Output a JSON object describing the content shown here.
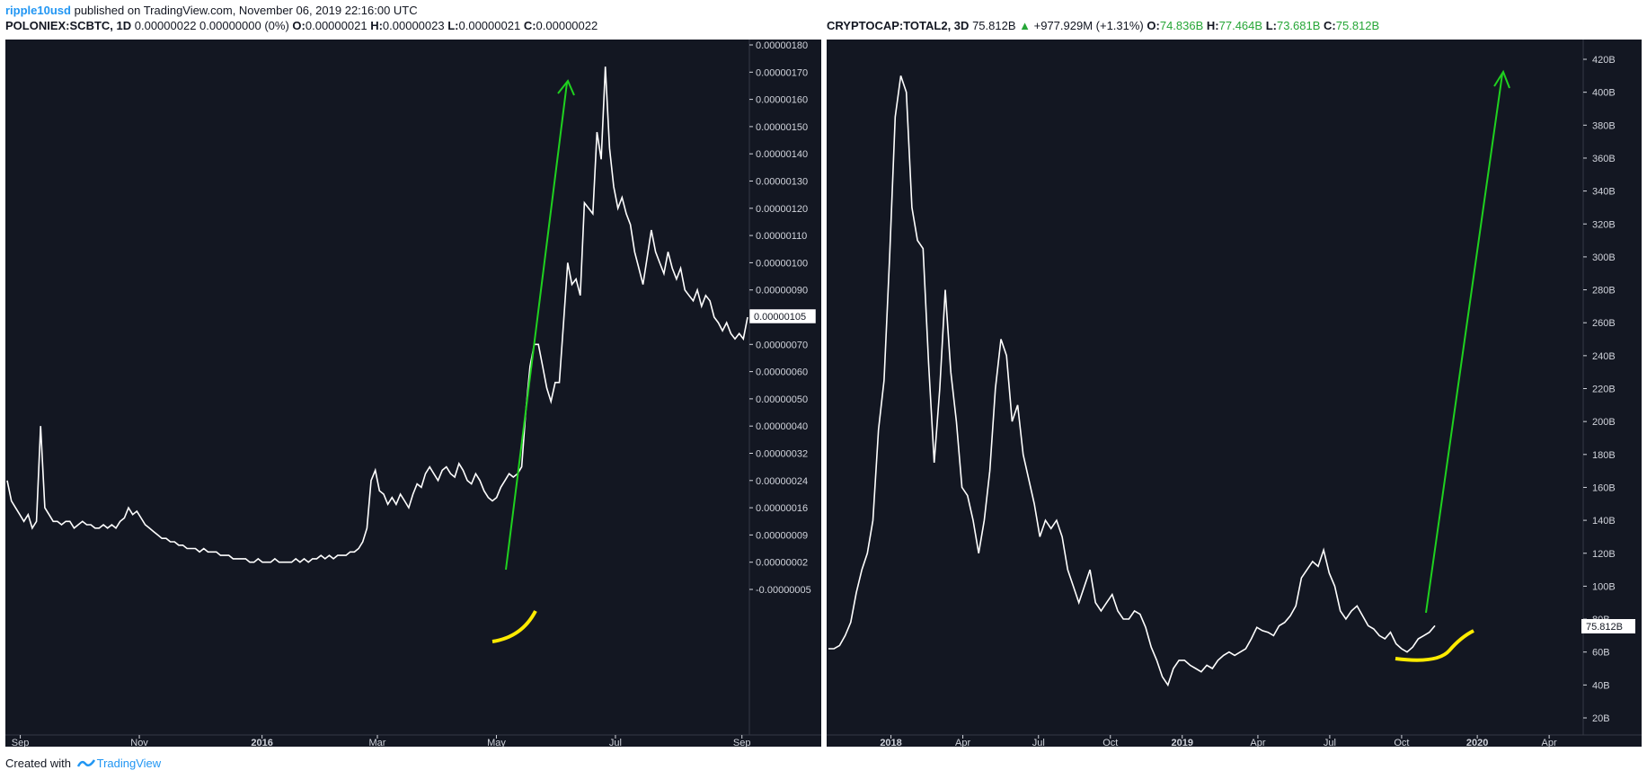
{
  "header": {
    "author": "ripple10usd",
    "published_text": "published on TradingView.com, November 06, 2019 22:16:00 UTC"
  },
  "footer": {
    "created_with": "Created with",
    "brand": "TradingView"
  },
  "left_chart": {
    "symbol": "POLONIEX:SCBTC, 1D",
    "stats": "0.00000022 0.00000000 (0%)",
    "o_label": "O:",
    "o_value": "0.00000021",
    "h_label": "H:",
    "h_value": "0.00000023",
    "l_label": "L:",
    "l_value": "0.00000021",
    "c_label": "C:",
    "c_value": "0.00000022",
    "price_tag": "0.00000105"
  },
  "right_chart": {
    "symbol": "CRYPTOCAP:TOTAL2, 3D",
    "last": "75.812B",
    "change": "+977.929M (+1.31%)",
    "o_label": "O:",
    "o_value": "74.836B",
    "h_label": "H:",
    "h_value": "77.464B",
    "l_label": "L:",
    "l_value": "73.681B",
    "c_label": "C:",
    "c_value": "75.812B",
    "price_tag": "75.812B"
  },
  "colors": {
    "bg": "#131722",
    "line": "#ffffff",
    "arrow": "#1fd11f",
    "curve": "#ffeb00",
    "axis_text": "#d1d4dc",
    "green_text": "#26a637",
    "author": "#2196f3"
  },
  "chart_data": [
    {
      "type": "line",
      "title": "POLONIEX:SCBTC, 1D",
      "xlabel": "",
      "ylabel": "",
      "ylim": [
        -1e-07,
        1.9e-06
      ],
      "y_ticks": [
        {
          "label": "0.00000180",
          "at": 180
        },
        {
          "label": "0.00000170",
          "at": 170
        },
        {
          "label": "0.00000160",
          "at": 160
        },
        {
          "label": "0.00000150",
          "at": 150
        },
        {
          "label": "0.00000140",
          "at": 140
        },
        {
          "label": "0.00000130",
          "at": 130
        },
        {
          "label": "0.00000120",
          "at": 120
        },
        {
          "label": "0.00000110",
          "at": 110
        },
        {
          "label": "0.00000100",
          "at": 100
        },
        {
          "label": "0.00000090",
          "at": 90
        },
        {
          "label": "0.00000080",
          "at": 80
        },
        {
          "label": "0.00000070",
          "at": 70
        },
        {
          "label": "0.00000060",
          "at": 60
        },
        {
          "label": "0.00000050",
          "at": 50
        },
        {
          "label": "0.00000040",
          "at": 40
        },
        {
          "label": "0.00000032",
          "at": 32
        },
        {
          "label": "0.00000024",
          "at": 24
        },
        {
          "label": "0.00000016",
          "at": 16
        },
        {
          "label": "0.00000009",
          "at": 8
        },
        {
          "label": "0.00000002",
          "at": 0
        },
        {
          "label": "-0.00000005",
          "at": -8
        }
      ],
      "x_ticks": [
        {
          "label": "Sep",
          "bold": false,
          "at": 0.02
        },
        {
          "label": "Nov",
          "bold": false,
          "at": 0.18
        },
        {
          "label": "2016",
          "bold": true,
          "at": 0.345
        },
        {
          "label": "Mar",
          "bold": false,
          "at": 0.5
        },
        {
          "label": "May",
          "bold": false,
          "at": 0.66
        },
        {
          "label": "Jul",
          "bold": false,
          "at": 0.82
        },
        {
          "label": "Sep",
          "bold": false,
          "at": 0.99
        }
      ],
      "series": [
        {
          "name": "SCBTC (x1e-8 BTC)",
          "values": [
            24,
            18,
            16,
            14,
            12,
            14,
            10,
            12,
            40,
            16,
            14,
            12,
            12,
            11,
            12,
            12,
            10,
            11,
            12,
            11,
            11,
            10,
            10,
            11,
            10,
            11,
            10,
            12,
            13,
            16,
            14,
            15,
            13,
            11,
            10,
            9,
            8,
            7,
            7,
            6,
            6,
            5,
            5,
            4,
            4,
            4,
            3,
            4,
            3,
            3,
            3,
            2,
            2,
            2,
            1,
            1,
            1,
            1,
            0,
            0,
            1,
            0,
            0,
            0,
            1,
            0,
            0,
            0,
            0,
            1,
            0,
            1,
            0,
            1,
            1,
            2,
            1,
            2,
            1,
            2,
            2,
            2,
            3,
            3,
            4,
            6,
            10,
            24,
            27,
            21,
            20,
            17,
            19,
            17,
            20,
            18,
            16,
            20,
            23,
            22,
            26,
            28,
            26,
            24,
            27,
            28,
            26,
            25,
            29,
            27,
            24,
            23,
            26,
            24,
            21,
            19,
            18,
            19,
            22,
            24,
            26,
            25,
            26,
            28,
            46,
            62,
            70,
            70,
            62,
            54,
            49,
            56,
            56,
            78,
            100,
            92,
            94,
            88,
            122,
            120,
            118,
            148,
            138,
            172,
            142,
            128,
            120,
            124,
            118,
            114,
            104,
            98,
            92,
            102,
            112,
            104,
            100,
            96,
            104,
            98,
            94,
            98,
            90,
            88,
            86,
            90,
            84,
            88,
            86,
            80,
            78,
            75,
            78,
            74,
            72,
            74,
            72,
            80
          ],
          "peak_value": 172
        }
      ]
    },
    {
      "type": "line",
      "title": "CRYPTOCAP:TOTAL2, 3D",
      "xlabel": "",
      "ylabel": "",
      "ylim": [
        20,
        430
      ],
      "y_ticks": [
        "420B",
        "400B",
        "380B",
        "360B",
        "340B",
        "320B",
        "300B",
        "280B",
        "260B",
        "240B",
        "220B",
        "200B",
        "180B",
        "160B",
        "140B",
        "120B",
        "100B",
        "80B",
        "60B",
        "40B",
        "20B"
      ],
      "y_tick_values": [
        420,
        400,
        380,
        360,
        340,
        320,
        300,
        280,
        260,
        240,
        220,
        200,
        180,
        160,
        140,
        120,
        100,
        80,
        60,
        40,
        20
      ],
      "x_ticks": [
        {
          "label": "2018",
          "bold": true,
          "at": 0.085
        },
        {
          "label": "Apr",
          "bold": false,
          "at": 0.18
        },
        {
          "label": "Jul",
          "bold": false,
          "at": 0.28
        },
        {
          "label": "Oct",
          "bold": false,
          "at": 0.375
        },
        {
          "label": "2019",
          "bold": true,
          "at": 0.47
        },
        {
          "label": "Apr",
          "bold": false,
          "at": 0.57
        },
        {
          "label": "Jul",
          "bold": false,
          "at": 0.665
        },
        {
          "label": "Oct",
          "bold": false,
          "at": 0.76
        },
        {
          "label": "2020",
          "bold": true,
          "at": 0.86
        },
        {
          "label": "Apr",
          "bold": false,
          "at": 0.955
        }
      ],
      "series": [
        {
          "name": "TOTAL2 (B USD)",
          "values": [
            62,
            62,
            64,
            70,
            78,
            96,
            110,
            120,
            140,
            195,
            225,
            300,
            385,
            410,
            400,
            330,
            310,
            305,
            235,
            175,
            220,
            280,
            230,
            200,
            160,
            155,
            140,
            120,
            140,
            170,
            220,
            250,
            240,
            200,
            210,
            180,
            165,
            150,
            130,
            140,
            135,
            140,
            130,
            110,
            100,
            90,
            100,
            110,
            90,
            85,
            90,
            95,
            85,
            80,
            80,
            85,
            83,
            75,
            63,
            55,
            45,
            40,
            50,
            55,
            55,
            52,
            50,
            48,
            52,
            50,
            55,
            58,
            60,
            58,
            60,
            62,
            68,
            75,
            73,
            72,
            70,
            76,
            78,
            82,
            88,
            105,
            110,
            115,
            112,
            122,
            108,
            100,
            85,
            80,
            85,
            88,
            82,
            76,
            74,
            70,
            68,
            72,
            65,
            62,
            60,
            63,
            68,
            70,
            72,
            76
          ]
        }
      ]
    }
  ]
}
